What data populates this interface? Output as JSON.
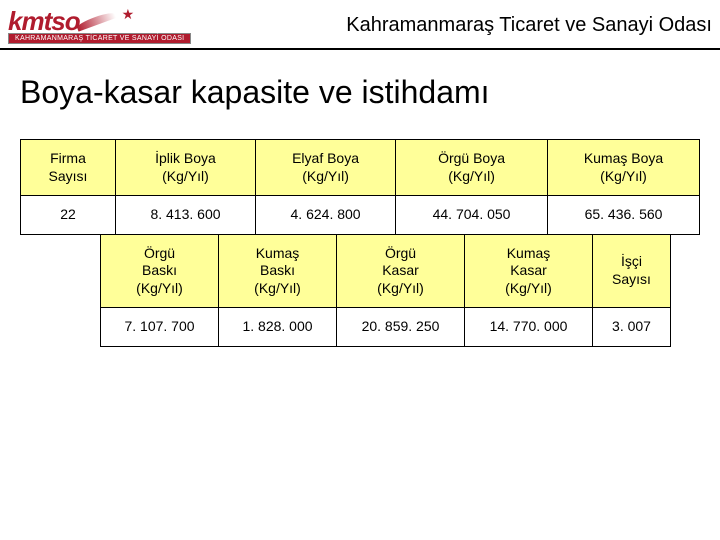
{
  "header": {
    "logo_text": "kmtso",
    "logo_sub": "KAHRAMANMARAŞ TİCARET VE SANAYİ ODASI",
    "org_title": "Kahramanmaraş Ticaret ve Sanayi Odası"
  },
  "page_title": "Boya-kasar kapasite ve istihdamı",
  "table1": {
    "headers": [
      "Firma\nSayısı",
      "İplik Boya\n(Kg/Yıl)",
      "Elyaf Boya\n(Kg/Yıl)",
      "Örgü Boya\n(Kg/Yıl)",
      "Kumaş Boya\n(Kg/Yıl)"
    ],
    "row": [
      "22",
      "8. 413. 600",
      "4. 624. 800",
      "44. 704. 050",
      "65. 436. 560"
    ]
  },
  "table2": {
    "headers": [
      "Örgü\nBaskı\n(Kg/Yıl)",
      "Kumaş\nBaskı\n(Kg/Yıl)",
      "Örgü\nKasar\n(Kg/Yıl)",
      "Kumaş\nKasar\n(Kg/Yıl)",
      "İşçi\nSayısı"
    ],
    "row": [
      "7. 107. 700",
      "1. 828. 000",
      "20. 859. 250",
      "14. 770. 000",
      "3. 007"
    ]
  },
  "colors": {
    "header_bg": "#ffff99",
    "value_bg": "#ffffff",
    "border": "#000000",
    "brand": "#b01c2e"
  }
}
